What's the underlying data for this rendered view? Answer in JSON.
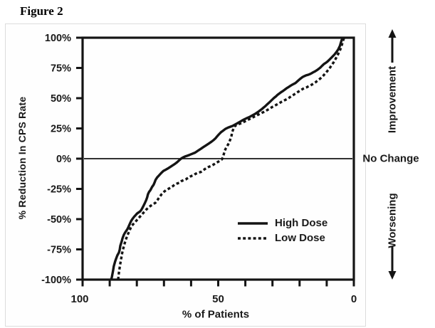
{
  "figure_label": "Figure 2",
  "chart_data": {
    "type": "line",
    "title": "Figure 2",
    "xlabel": "% of Patients",
    "ylabel": "% Reduction In CPS Rate",
    "x_axis": {
      "min": 0,
      "max": 100,
      "reversed": true,
      "minor_ticks": [
        100,
        90,
        80,
        70,
        60,
        50,
        40,
        30,
        20,
        10,
        0
      ],
      "labeled_ticks": [
        {
          "v": 100,
          "label": "100"
        },
        {
          "v": 50,
          "label": "50"
        },
        {
          "v": 0,
          "label": "0"
        }
      ]
    },
    "y_axis": {
      "min": -100,
      "max": 100,
      "ticks": [
        {
          "v": 100,
          "label": "100%"
        },
        {
          "v": 75,
          "label": "75%"
        },
        {
          "v": 50,
          "label": "50%"
        },
        {
          "v": 25,
          "label": "25%"
        },
        {
          "v": 0,
          "label": "0%"
        },
        {
          "v": -25,
          "label": "-25%"
        },
        {
          "v": -50,
          "label": "-50%"
        },
        {
          "v": -75,
          "label": "-75%"
        },
        {
          "v": -100,
          "label": "-100%"
        }
      ]
    },
    "zero_line": true,
    "grid": false,
    "legend_position": "lower-right",
    "line_color": "#141414",
    "annotations": {
      "improvement": "Improvement",
      "no_change": "No Change",
      "worsening": "Worsening"
    },
    "series": [
      {
        "name": "High Dose",
        "style": "solid",
        "points": [
          [
            89.5,
            -100
          ],
          [
            89.2,
            -98
          ],
          [
            88.8,
            -93
          ],
          [
            88.5,
            -89
          ],
          [
            88,
            -85
          ],
          [
            87.7,
            -83
          ],
          [
            87.2,
            -80
          ],
          [
            86.6,
            -77.5
          ],
          [
            86.3,
            -75
          ],
          [
            86.1,
            -72
          ],
          [
            85.6,
            -68.5
          ],
          [
            85.3,
            -66
          ],
          [
            84.8,
            -63
          ],
          [
            84.3,
            -61
          ],
          [
            84,
            -60
          ],
          [
            83.4,
            -58
          ],
          [
            83.2,
            -57
          ],
          [
            82.7,
            -54.5
          ],
          [
            82.1,
            -51.5
          ],
          [
            81.5,
            -49.5
          ],
          [
            81,
            -48
          ],
          [
            80.4,
            -46.5
          ],
          [
            80,
            -45.5
          ],
          [
            79.4,
            -44.5
          ],
          [
            78.9,
            -43.8
          ],
          [
            78.4,
            -42.5
          ],
          [
            78,
            -41
          ],
          [
            77.5,
            -38.8
          ],
          [
            77,
            -36.5
          ],
          [
            76.6,
            -34.5
          ],
          [
            76.2,
            -32
          ],
          [
            75.9,
            -29.5
          ],
          [
            75.5,
            -27.5
          ],
          [
            75,
            -26
          ],
          [
            74.4,
            -23.5
          ],
          [
            73.8,
            -21.5
          ],
          [
            73.4,
            -19.5
          ],
          [
            73.1,
            -17.5
          ],
          [
            72.5,
            -15.5
          ],
          [
            71.8,
            -13.8
          ],
          [
            71,
            -11.8
          ],
          [
            70.2,
            -10.2
          ],
          [
            69.4,
            -9.2
          ],
          [
            68.6,
            -8.2
          ],
          [
            67.8,
            -7
          ],
          [
            67,
            -5.8
          ],
          [
            66.1,
            -4.5
          ],
          [
            65.2,
            -3
          ],
          [
            64.5,
            -1.5
          ],
          [
            63.7,
            0
          ],
          [
            63,
            1
          ],
          [
            62.2,
            1.8
          ],
          [
            61.4,
            2.4
          ],
          [
            60.5,
            3.2
          ],
          [
            59.6,
            4
          ],
          [
            58.5,
            5
          ],
          [
            57.5,
            6.5
          ],
          [
            56.5,
            8
          ],
          [
            55.5,
            9.5
          ],
          [
            54.5,
            11
          ],
          [
            53.5,
            12.5
          ],
          [
            52.5,
            14
          ],
          [
            51.8,
            15.2
          ],
          [
            51,
            16.8
          ],
          [
            50.4,
            18.5
          ],
          [
            49.8,
            20
          ],
          [
            49,
            21.8
          ],
          [
            48.2,
            23.2
          ],
          [
            47.4,
            24.5
          ],
          [
            46.6,
            25.5
          ],
          [
            45.8,
            26.2
          ],
          [
            45,
            26.8
          ],
          [
            44.4,
            27.4
          ],
          [
            43.8,
            28.2
          ],
          [
            43,
            29.2
          ],
          [
            42,
            30.5
          ],
          [
            41.2,
            31.5
          ],
          [
            40.4,
            32.5
          ],
          [
            39.5,
            33.5
          ],
          [
            38.6,
            34.3
          ],
          [
            37.8,
            35.3
          ],
          [
            37,
            36.3
          ],
          [
            36.2,
            37.3
          ],
          [
            35.4,
            38.5
          ],
          [
            34.6,
            39.8
          ],
          [
            33.9,
            41
          ],
          [
            33.3,
            42.2
          ],
          [
            32.6,
            43.5
          ],
          [
            32,
            44.8
          ],
          [
            31.3,
            46.2
          ],
          [
            30.7,
            47.5
          ],
          [
            30,
            49
          ],
          [
            29.4,
            50.3
          ],
          [
            28.7,
            51.5
          ],
          [
            28.1,
            52.8
          ],
          [
            27.4,
            54
          ],
          [
            26.8,
            55
          ],
          [
            26.1,
            56
          ],
          [
            25.5,
            57
          ],
          [
            24.8,
            58.2
          ],
          [
            24.1,
            59.2
          ],
          [
            23.4,
            60.2
          ],
          [
            22.8,
            61
          ],
          [
            22.1,
            61.8
          ],
          [
            21.5,
            62.6
          ],
          [
            20.8,
            64
          ],
          [
            20.2,
            65.2
          ],
          [
            19.5,
            66.5
          ],
          [
            18.9,
            67.5
          ],
          [
            18.2,
            68.3
          ],
          [
            17.6,
            68.9
          ],
          [
            16.9,
            69.3
          ],
          [
            16.3,
            69.8
          ],
          [
            15.6,
            70.6
          ],
          [
            15,
            71.4
          ],
          [
            14.3,
            72.2
          ],
          [
            13.6,
            73.2
          ],
          [
            13,
            74.2
          ],
          [
            12.3,
            75.4
          ],
          [
            11.6,
            77
          ],
          [
            11,
            78.3
          ],
          [
            10.3,
            79.3
          ],
          [
            9.7,
            80.3
          ],
          [
            9,
            81.8
          ],
          [
            8.4,
            83.2
          ],
          [
            7.7,
            84.8
          ],
          [
            7.1,
            86.2
          ],
          [
            6.4,
            88.2
          ],
          [
            5.8,
            90.2
          ],
          [
            5.4,
            92
          ],
          [
            5.1,
            93.5
          ],
          [
            4.9,
            95
          ],
          [
            4.7,
            96.5
          ],
          [
            4.5,
            98
          ],
          [
            4.3,
            99.2
          ],
          [
            4.2,
            100
          ]
        ]
      },
      {
        "name": "Low Dose",
        "style": "dashed",
        "points": [
          [
            86.9,
            -100
          ],
          [
            86.6,
            -94
          ],
          [
            86.2,
            -88
          ],
          [
            85.8,
            -83
          ],
          [
            85.4,
            -78
          ],
          [
            84.9,
            -73.5
          ],
          [
            84.4,
            -69.5
          ],
          [
            83.9,
            -66
          ],
          [
            83.4,
            -63
          ],
          [
            82.9,
            -60.5
          ],
          [
            82.4,
            -57.8
          ],
          [
            82,
            -55.8
          ],
          [
            81.2,
            -53.8
          ],
          [
            80.4,
            -51.8
          ],
          [
            79.6,
            -49.8
          ],
          [
            78.8,
            -47.8
          ],
          [
            78,
            -45.8
          ],
          [
            77.2,
            -43.8
          ],
          [
            76.4,
            -41.8
          ],
          [
            75.6,
            -40.2
          ],
          [
            74.8,
            -38.8
          ],
          [
            74,
            -37.6
          ],
          [
            73.2,
            -36.6
          ],
          [
            72.4,
            -34.2
          ],
          [
            71.6,
            -31.6
          ],
          [
            70.8,
            -29.2
          ],
          [
            70,
            -27.4
          ],
          [
            69.2,
            -26
          ],
          [
            68.4,
            -25
          ],
          [
            67.6,
            -24
          ],
          [
            66.8,
            -22.8
          ],
          [
            66,
            -21.4
          ],
          [
            65.2,
            -20.6
          ],
          [
            64.4,
            -20
          ],
          [
            63.6,
            -18.6
          ],
          [
            62.8,
            -17.8
          ],
          [
            62,
            -17.2
          ],
          [
            61.2,
            -16
          ],
          [
            60.4,
            -14.9
          ],
          [
            59.7,
            -14.2
          ],
          [
            59.1,
            -13.8
          ],
          [
            58.4,
            -12.6
          ],
          [
            57.7,
            -11.9
          ],
          [
            57.1,
            -11.4
          ],
          [
            56.4,
            -11
          ],
          [
            55.7,
            -9.8
          ],
          [
            55.1,
            -8.9
          ],
          [
            54.4,
            -7.8
          ],
          [
            53.8,
            -7.1
          ],
          [
            53.1,
            -6.4
          ],
          [
            52.5,
            -5.9
          ],
          [
            51.8,
            -5
          ],
          [
            51.2,
            -4.2
          ],
          [
            50.5,
            -3.2
          ],
          [
            49.9,
            -2.4
          ],
          [
            49.2,
            -1.4
          ],
          [
            48.6,
            -0.5
          ],
          [
            48.2,
            1.5
          ],
          [
            47.9,
            4
          ],
          [
            47.6,
            6.5
          ],
          [
            47.2,
            8.5
          ],
          [
            46.8,
            10
          ],
          [
            46.4,
            11.5
          ],
          [
            46,
            13
          ],
          [
            45.7,
            15
          ],
          [
            45.4,
            16.8
          ],
          [
            45.1,
            19
          ],
          [
            44.9,
            21.5
          ],
          [
            44.6,
            23.5
          ],
          [
            44.3,
            25.2
          ],
          [
            44,
            26.2
          ],
          [
            43.8,
            27
          ],
          [
            43.3,
            27.8
          ],
          [
            42.6,
            28.4
          ],
          [
            41.9,
            29
          ],
          [
            41.2,
            29.6
          ],
          [
            40.5,
            30.4
          ],
          [
            39.9,
            31.2
          ],
          [
            39.2,
            32
          ],
          [
            38.6,
            32.6
          ],
          [
            37.9,
            33.4
          ],
          [
            37.2,
            34.2
          ],
          [
            36.6,
            34.9
          ],
          [
            36,
            35.5
          ],
          [
            35.3,
            36.3
          ],
          [
            34.6,
            37.1
          ],
          [
            34,
            37.8
          ],
          [
            33.3,
            38.5
          ],
          [
            32.6,
            39.3
          ],
          [
            32,
            40.1
          ],
          [
            31.3,
            41
          ],
          [
            30.7,
            41.8
          ],
          [
            30,
            42.8
          ],
          [
            29.4,
            43.6
          ],
          [
            28.7,
            44.4
          ],
          [
            28.1,
            45.1
          ],
          [
            27.4,
            46
          ],
          [
            26.8,
            46.8
          ],
          [
            26.1,
            47.6
          ],
          [
            25.5,
            48.3
          ],
          [
            24.7,
            49.2
          ],
          [
            23.9,
            50.3
          ],
          [
            23.2,
            51.4
          ],
          [
            22.6,
            52.3
          ],
          [
            21.9,
            53.3
          ],
          [
            21.3,
            54.2
          ],
          [
            20.6,
            55.2
          ],
          [
            20,
            56
          ],
          [
            19.3,
            57
          ],
          [
            18.7,
            57.8
          ],
          [
            18,
            58.5
          ],
          [
            17.4,
            59
          ],
          [
            16.7,
            59.8
          ],
          [
            16.1,
            60.5
          ],
          [
            15.4,
            61.3
          ],
          [
            14.8,
            62.2
          ],
          [
            14.1,
            63.2
          ],
          [
            13.5,
            64.3
          ],
          [
            12.8,
            65.5
          ],
          [
            12.2,
            66.6
          ],
          [
            11.5,
            68
          ],
          [
            10.9,
            69.5
          ],
          [
            10.3,
            71
          ],
          [
            9.8,
            72.4
          ],
          [
            9.2,
            74
          ],
          [
            8.6,
            75.8
          ],
          [
            8,
            77.8
          ],
          [
            7.4,
            79.8
          ],
          [
            6.9,
            81.8
          ],
          [
            6.4,
            83.8
          ],
          [
            5.9,
            86
          ],
          [
            5.4,
            88.2
          ],
          [
            5,
            90.2
          ],
          [
            4.7,
            92.2
          ],
          [
            4.4,
            94.2
          ],
          [
            4.1,
            96.4
          ],
          [
            3.9,
            98
          ],
          [
            3.7,
            99.2
          ],
          [
            3.6,
            100
          ]
        ]
      }
    ]
  }
}
